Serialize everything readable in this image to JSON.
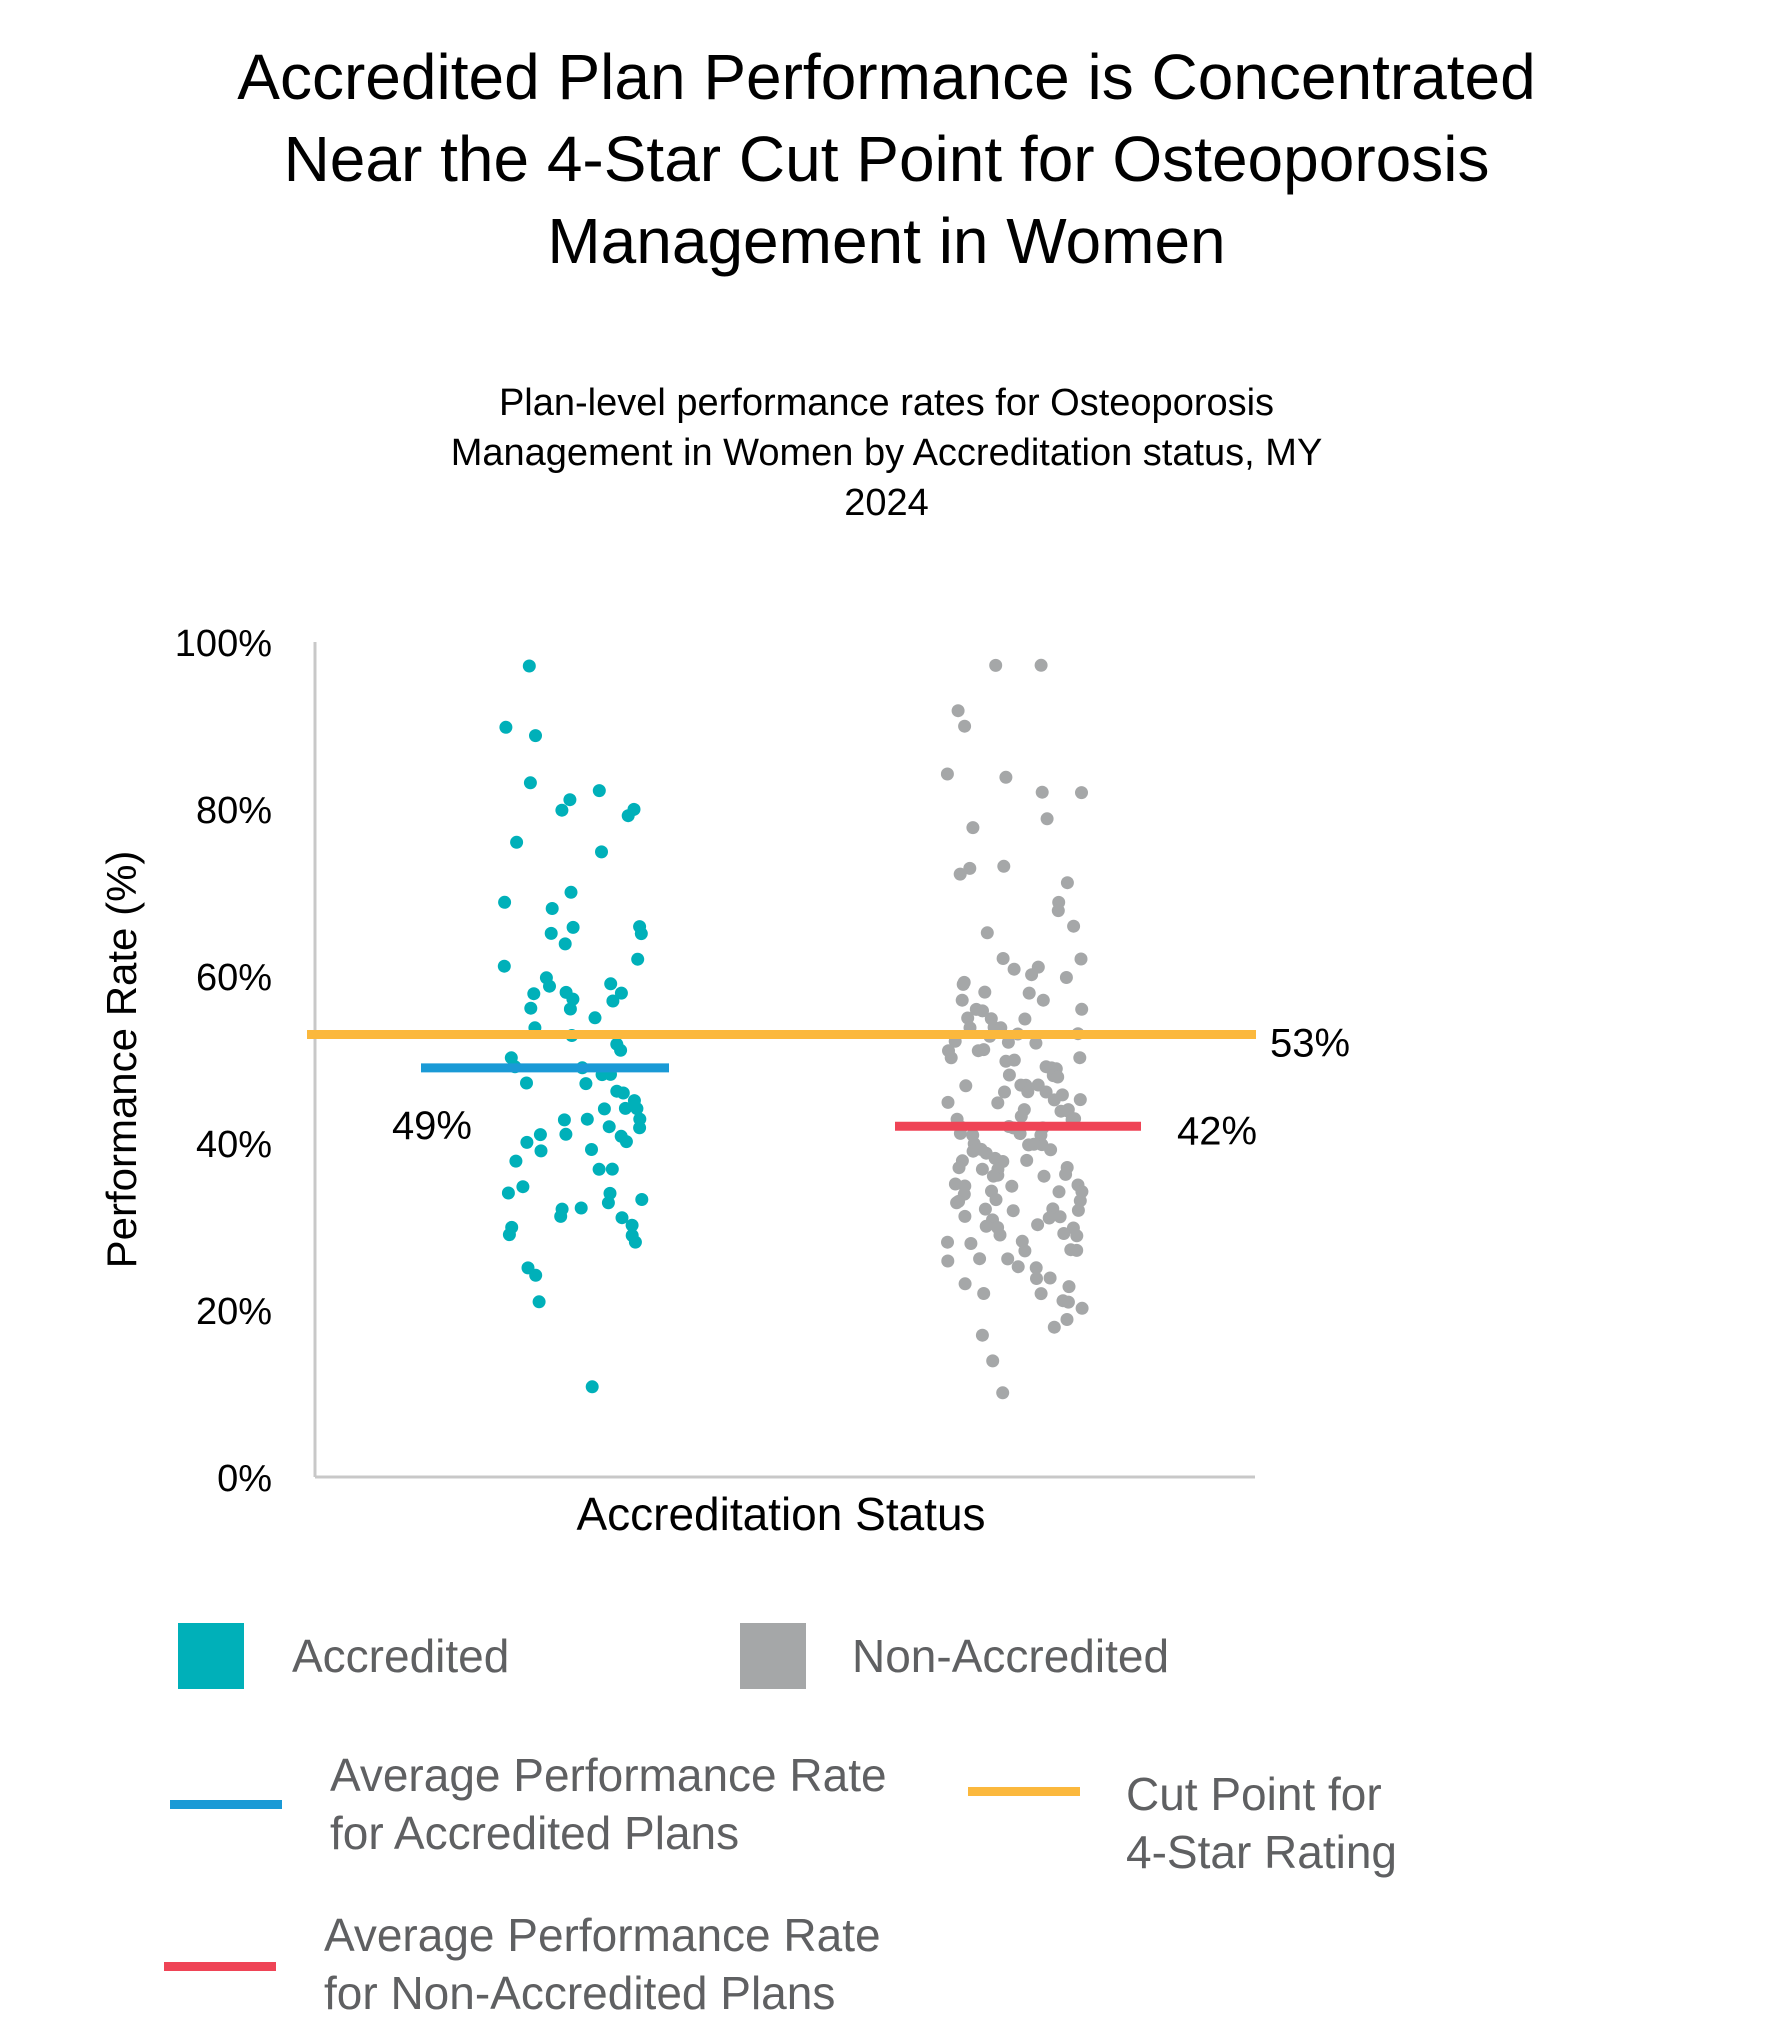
{
  "title_lines": [
    "Accredited Plan Performance is Concentrated",
    "Near the 4-Star Cut Point for Osteoporosis",
    "Management in Women"
  ],
  "subtitle_lines": [
    "Plan-level performance rates for Osteoporosis",
    "Management in Women by Accreditation status, MY",
    "2024"
  ],
  "colors": {
    "accredited": "#00b0b9",
    "non_accredited": "#a5a7a8",
    "avg_accredited": "#1a9ad6",
    "avg_non_accredited": "#ef4456",
    "cut_point": "#fbb83d",
    "axis": "#c8c8c8"
  },
  "chart_data": {
    "type": "scatter",
    "title": "Accredited Plan Performance is Concentrated Near the 4-Star Cut Point for Osteoporosis Management in Women",
    "subtitle": "Plan-level performance rates for Osteoporosis Management in Women by Accreditation status, MY 2024",
    "xlabel": "Accreditation Status",
    "ylabel": "Performance Rate (%)",
    "ylim": [
      0,
      100
    ],
    "yticks": [
      "0%",
      "20%",
      "40%",
      "60%",
      "80%",
      "100%"
    ],
    "grid": false,
    "categories": [
      "Accredited",
      "Non-Accredited"
    ],
    "series": [
      {
        "name": "Accredited",
        "color": "#00b0b9",
        "values": [
          97,
          90,
          89,
          83,
          82,
          81,
          80,
          80,
          79,
          76,
          75,
          70,
          69,
          68,
          66,
          66,
          65,
          65,
          64,
          62,
          61,
          60,
          59,
          59,
          58,
          58,
          58,
          57,
          57,
          56,
          56,
          55,
          54,
          53,
          52,
          51,
          50,
          49,
          49,
          48,
          48,
          47,
          47,
          46,
          46,
          45,
          44,
          44,
          44,
          43,
          43,
          43,
          42,
          42,
          41,
          41,
          41,
          40,
          40,
          39,
          39,
          38,
          37,
          37,
          35,
          34,
          34,
          33,
          33,
          32,
          32,
          31,
          31,
          30,
          30,
          29,
          29,
          28,
          25,
          24,
          21,
          11
        ]
      },
      {
        "name": "Non-Accredited",
        "color": "#a5a7a8",
        "values": [
          97,
          97,
          92,
          90,
          84,
          84,
          82,
          82,
          79,
          78,
          73,
          73,
          72,
          71,
          69,
          68,
          66,
          65,
          62,
          62,
          61,
          61,
          60,
          60,
          59,
          59,
          58,
          58,
          57,
          57,
          56,
          56,
          56,
          55,
          55,
          55,
          54,
          54,
          54,
          53,
          53,
          53,
          52,
          52,
          52,
          51,
          51,
          51,
          50,
          50,
          50,
          50,
          49,
          49,
          49,
          49,
          48,
          48,
          48,
          48,
          47,
          47,
          47,
          47,
          46,
          46,
          46,
          46,
          45,
          45,
          45,
          45,
          44,
          44,
          44,
          44,
          43,
          43,
          43,
          43,
          42,
          42,
          42,
          42,
          41,
          41,
          41,
          41,
          40,
          40,
          40,
          40,
          39,
          39,
          39,
          39,
          38,
          38,
          38,
          38,
          37,
          37,
          37,
          37,
          36,
          36,
          36,
          36,
          35,
          35,
          35,
          35,
          34,
          34,
          34,
          34,
          33,
          33,
          33,
          33,
          32,
          32,
          32,
          32,
          31,
          31,
          31,
          31,
          30,
          30,
          30,
          30,
          29,
          29,
          29,
          28,
          28,
          28,
          27,
          27,
          27,
          26,
          26,
          26,
          25,
          25,
          24,
          24,
          23,
          23,
          22,
          22,
          21,
          21,
          20,
          19,
          18,
          17,
          14,
          10
        ]
      }
    ],
    "reference_lines": [
      {
        "name": "Average Performance Rate for Accredited Plans",
        "value": 49,
        "label": "49%",
        "applies_to": "Accredited",
        "color": "#1a9ad6"
      },
      {
        "name": "Average Performance Rate for Non-Accredited Plans",
        "value": 42,
        "label": "42%",
        "applies_to": "Non-Accredited",
        "color": "#ef4456"
      },
      {
        "name": "Cut Point for 4-Star Rating",
        "value": 53,
        "label": "53%",
        "applies_to": "all",
        "color": "#fbb83d"
      }
    ],
    "legend_placement": "bottom"
  },
  "legend": {
    "accredited": "Accredited",
    "non_accredited": "Non-Accredited",
    "avg_accredited_lines": [
      "Average Performance Rate",
      "for Accredited Plans"
    ],
    "cut_point_lines": [
      "Cut Point for",
      "4-Star Rating"
    ],
    "avg_non_accredited_lines": [
      "Average Performance Rate",
      "for Non-Accredited Plans"
    ]
  }
}
